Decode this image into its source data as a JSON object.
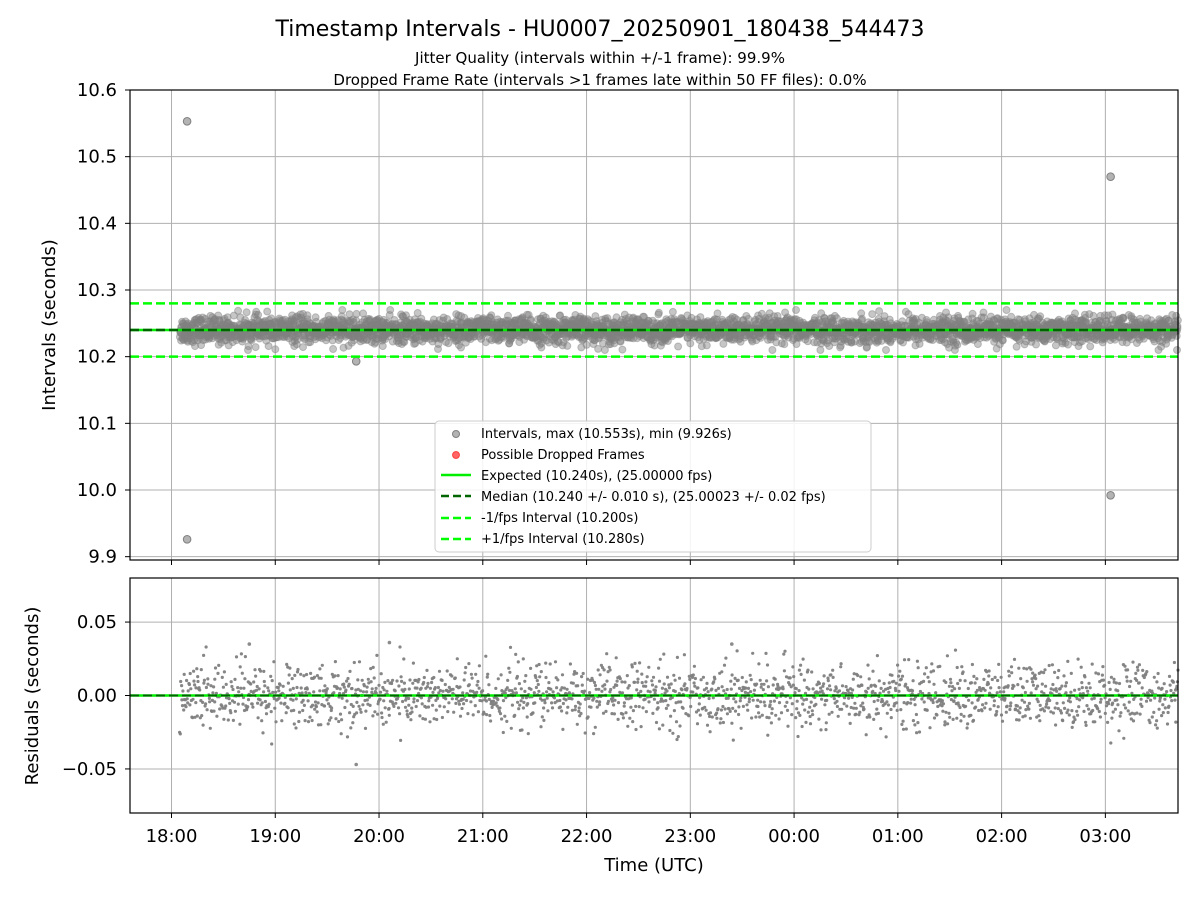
{
  "chart_data": {
    "title": "Timestamp Intervals - HU0007_20250901_180438_544473",
    "subtitle_lines": [
      "Jitter Quality (intervals within +/-1 frame): 99.9%",
      "Dropped Frame Rate (intervals >1 frames late within 50 FF files): 0.0%"
    ],
    "colors": {
      "points": "#808080",
      "expected": "#00ee00",
      "median": "#006400",
      "interval_lines": "#00ff00",
      "dropped": "#ff0000",
      "grid": "#b0b0b0"
    },
    "x_axis": {
      "label": "Time (UTC)",
      "range_hours": [
        17.6,
        27.7
      ],
      "ticks": [
        {
          "v": 18,
          "label": "18:00"
        },
        {
          "v": 19,
          "label": "19:00"
        },
        {
          "v": 20,
          "label": "20:00"
        },
        {
          "v": 21,
          "label": "21:00"
        },
        {
          "v": 22,
          "label": "22:00"
        },
        {
          "v": 23,
          "label": "23:00"
        },
        {
          "v": 24,
          "label": "00:00"
        },
        {
          "v": 25,
          "label": "01:00"
        },
        {
          "v": 26,
          "label": "02:00"
        },
        {
          "v": 27,
          "label": "03:00"
        }
      ],
      "data_start_hours": 18.08,
      "data_end_hours": 27.7
    },
    "charts": [
      {
        "id": "intervals",
        "type": "scatter",
        "ylabel": "Intervals (seconds)",
        "ylim": [
          9.895,
          10.6
        ],
        "yticks": [
          {
            "v": 9.9,
            "label": "9.9"
          },
          {
            "v": 10.0,
            "label": "10.0"
          },
          {
            "v": 10.1,
            "label": "10.1"
          },
          {
            "v": 10.2,
            "label": "10.2"
          },
          {
            "v": 10.3,
            "label": "10.3"
          },
          {
            "v": 10.4,
            "label": "10.4"
          },
          {
            "v": 10.5,
            "label": "10.5"
          },
          {
            "v": 10.6,
            "label": "10.6"
          }
        ],
        "expected": 10.24,
        "median": 10.24,
        "minus_interval": 10.2,
        "plus_interval": 10.28,
        "point_count": 3400,
        "typical_spread": 0.01,
        "outliers": [
          {
            "x": 18.15,
            "y": 10.553
          },
          {
            "x": 18.15,
            "y": 9.926
          },
          {
            "x": 27.05,
            "y": 10.47
          },
          {
            "x": 27.05,
            "y": 9.992
          },
          {
            "x": 19.78,
            "y": 10.193
          }
        ],
        "legend": [
          {
            "kind": "dot-gray",
            "label": "Intervals, max (10.553s), min (9.926s)"
          },
          {
            "kind": "dot-red",
            "label": "Possible Dropped Frames"
          },
          {
            "kind": "solid-expected",
            "label": "Expected (10.240s), (25.00000 fps)"
          },
          {
            "kind": "dash-median",
            "label": "Median (10.240 +/- 0.010 s), (25.00023 +/- 0.02 fps)"
          },
          {
            "kind": "dash-interval",
            "label": "-1/fps Interval (10.200s)"
          },
          {
            "kind": "dash-interval",
            "label": "+1/fps Interval (10.280s)"
          }
        ]
      },
      {
        "id": "residuals",
        "type": "scatter",
        "ylabel": "Residuals (seconds)",
        "ylim": [
          -0.08,
          0.08
        ],
        "yticks": [
          {
            "v": 0.05,
            "label": "0.05"
          },
          {
            "v": 0.0,
            "label": "0.00"
          },
          {
            "v": -0.05,
            "label": "−0.05"
          }
        ],
        "zero_line": 0.0,
        "point_count": 1900,
        "typical_spread": 0.011,
        "outliers": [
          {
            "x": 19.78,
            "y": -0.047
          },
          {
            "x": 20.1,
            "y": 0.036
          },
          {
            "x": 18.75,
            "y": 0.035
          },
          {
            "x": 23.4,
            "y": 0.035
          }
        ]
      }
    ]
  }
}
